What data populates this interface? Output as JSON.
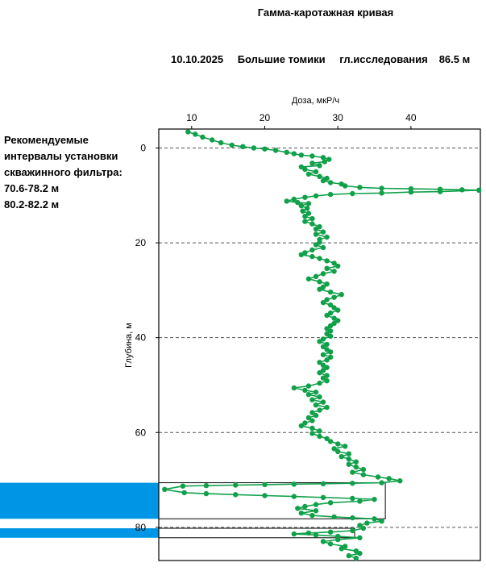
{
  "title": "Гамма-каротажная кривая",
  "header": {
    "date": "10.10.2025",
    "location": "Большие томики",
    "depth_label": "гл.исследования",
    "depth_value": "86.5 м"
  },
  "recommendation": {
    "lines": [
      "Рекомендуемые",
      "интервалы установки",
      "скважинного фильтра:"
    ],
    "intervals": [
      "70.6-78.2 м",
      "80.2-82.2 м"
    ]
  },
  "colors": {
    "curve": "#11a04a",
    "filter": "#0096e6",
    "grid": "#555555"
  },
  "chart_data": {
    "type": "line",
    "xlabel": "Доза, мкР/ч",
    "ylabel": "Глубина, м",
    "xlim": [
      5.5,
      49.5
    ],
    "ylim": [
      87,
      -4
    ],
    "xticks": [
      10,
      20,
      30,
      40
    ],
    "yticks": [
      0,
      20,
      40,
      60,
      80
    ],
    "x_axis_position": "top",
    "grid": "horizontal dashed",
    "filter_intervals": [
      [
        70.6,
        78.2
      ],
      [
        80.2,
        82.2
      ]
    ],
    "series": [
      {
        "points": [
          [
            9.5,
            -3.4
          ],
          [
            10.5,
            -2.9
          ],
          [
            11.5,
            -2.3
          ],
          [
            12.8,
            -1.7
          ],
          [
            14,
            -1.1
          ],
          [
            15.5,
            -0.6
          ],
          [
            17,
            -0.3
          ],
          [
            18.5,
            0
          ],
          [
            20,
            0.2
          ],
          [
            21.5,
            0.5
          ],
          [
            23,
            0.9
          ],
          [
            24,
            1.2
          ],
          [
            25,
            1.5
          ],
          [
            26.5,
            1.7
          ],
          [
            28,
            2
          ],
          [
            28.8,
            2.4
          ],
          [
            28.2,
            2.9
          ],
          [
            26.5,
            3.2
          ],
          [
            27.5,
            3.7
          ],
          [
            25,
            4
          ],
          [
            25.5,
            4.5
          ],
          [
            27,
            5
          ],
          [
            26,
            5.5
          ],
          [
            27.5,
            6
          ],
          [
            28.5,
            6.4
          ],
          [
            28,
            6.9
          ],
          [
            29,
            7.3
          ],
          [
            30.5,
            7.6
          ],
          [
            31,
            8
          ],
          [
            33,
            8.3
          ],
          [
            36,
            8.5
          ],
          [
            40,
            8.6
          ],
          [
            44,
            8.7
          ],
          [
            47,
            8.8
          ],
          [
            49.3,
            8.9
          ],
          [
            44,
            9.2
          ],
          [
            40,
            9.3
          ],
          [
            36,
            9.5
          ],
          [
            32,
            9.6
          ],
          [
            29,
            9.8
          ],
          [
            27,
            10.1
          ],
          [
            25.5,
            10.4
          ],
          [
            24,
            10.8
          ],
          [
            23,
            11.2
          ],
          [
            24.5,
            11.5
          ],
          [
            26,
            11.7
          ],
          [
            25,
            12.2
          ],
          [
            25.8,
            12.7
          ],
          [
            25.2,
            13.3
          ],
          [
            26,
            13.8
          ],
          [
            25.5,
            14.4
          ],
          [
            26.5,
            14.9
          ],
          [
            25.5,
            15.5
          ],
          [
            26.5,
            16
          ],
          [
            27.5,
            16.6
          ],
          [
            27,
            17.1
          ],
          [
            28,
            17.7
          ],
          [
            27,
            18.2
          ],
          [
            28.5,
            18.8
          ],
          [
            27.5,
            19.3
          ],
          [
            27.5,
            19.9
          ],
          [
            27,
            20.4
          ],
          [
            28,
            21
          ],
          [
            26.5,
            21.5
          ],
          [
            25.5,
            22.1
          ],
          [
            25,
            22.5
          ],
          [
            26.5,
            22.9
          ],
          [
            27.5,
            23.3
          ],
          [
            28.5,
            23.8
          ],
          [
            29.5,
            24.3
          ],
          [
            30,
            24.9
          ],
          [
            28.5,
            25.4
          ],
          [
            29.5,
            26
          ],
          [
            28,
            26.5
          ],
          [
            27,
            27.1
          ],
          [
            26,
            27.6
          ],
          [
            27.5,
            28.2
          ],
          [
            28.5,
            28.7
          ],
          [
            28,
            29.3
          ],
          [
            27.5,
            29.8
          ],
          [
            29,
            30.4
          ],
          [
            30.5,
            30.9
          ],
          [
            29.5,
            31.5
          ],
          [
            28.5,
            32
          ],
          [
            28,
            32.6
          ],
          [
            29,
            33.1
          ],
          [
            29.5,
            33.7
          ],
          [
            30,
            34.2
          ],
          [
            29,
            34.8
          ],
          [
            28.5,
            35.3
          ],
          [
            29.5,
            35.9
          ],
          [
            30,
            36.4
          ],
          [
            29.5,
            37
          ],
          [
            29,
            37.5
          ],
          [
            28.5,
            38.1
          ],
          [
            29,
            38.6
          ],
          [
            28.5,
            39.2
          ],
          [
            29,
            39.7
          ],
          [
            28,
            40.3
          ],
          [
            27.5,
            40.8
          ],
          [
            28.5,
            41.4
          ],
          [
            28,
            41.9
          ],
          [
            28.5,
            42.5
          ],
          [
            29,
            43
          ],
          [
            28,
            43.6
          ],
          [
            29,
            44.1
          ],
          [
            28.5,
            44.7
          ],
          [
            27.5,
            45.2
          ],
          [
            28,
            45.8
          ],
          [
            28.5,
            46.3
          ],
          [
            28,
            46.9
          ],
          [
            27.5,
            47.4
          ],
          [
            28.5,
            48
          ],
          [
            28,
            48.5
          ],
          [
            28.5,
            49.1
          ],
          [
            27.5,
            49.6
          ],
          [
            26,
            50.2
          ],
          [
            24,
            50.6
          ],
          [
            25.5,
            51.1
          ],
          [
            27,
            51.5
          ],
          [
            26,
            52
          ],
          [
            27.5,
            52.5
          ],
          [
            26.5,
            53.1
          ],
          [
            28,
            53.6
          ],
          [
            27,
            54.2
          ],
          [
            28.5,
            54.7
          ],
          [
            27.5,
            55.3
          ],
          [
            26.5,
            55.8
          ],
          [
            27,
            56.4
          ],
          [
            26,
            56.9
          ],
          [
            26.5,
            57.5
          ],
          [
            25.5,
            58
          ],
          [
            25,
            58.6
          ],
          [
            26.5,
            59.1
          ],
          [
            27.5,
            59.7
          ],
          [
            26.5,
            60.2
          ],
          [
            27.5,
            60.8
          ],
          [
            28.5,
            61.3
          ],
          [
            29,
            61.9
          ],
          [
            30,
            62.4
          ],
          [
            31,
            62.9
          ],
          [
            29.5,
            63.4
          ],
          [
            30,
            64
          ],
          [
            31.5,
            64.5
          ],
          [
            30.5,
            65.1
          ],
          [
            31.5,
            65.6
          ],
          [
            32.5,
            66.2
          ],
          [
            31.5,
            66.7
          ],
          [
            32.5,
            67.3
          ],
          [
            33.5,
            67.8
          ],
          [
            32,
            68.4
          ],
          [
            33.5,
            68.9
          ],
          [
            35.5,
            69.4
          ],
          [
            37,
            69.7
          ],
          [
            38.5,
            70.2
          ],
          [
            36,
            70.6
          ],
          [
            32,
            70.7
          ],
          [
            28,
            70.8
          ],
          [
            24,
            70.9
          ],
          [
            20,
            71
          ],
          [
            16,
            71.1
          ],
          [
            12,
            71.2
          ],
          [
            8.8,
            71.3
          ],
          [
            6.3,
            72
          ],
          [
            9,
            72.7
          ],
          [
            12,
            72.9
          ],
          [
            16,
            73.1
          ],
          [
            20,
            73.3
          ],
          [
            24,
            73.5
          ],
          [
            28,
            73.7
          ],
          [
            32,
            73.9
          ],
          [
            35,
            74.1
          ],
          [
            33,
            74.5
          ],
          [
            29,
            74.8
          ],
          [
            27,
            75.2
          ],
          [
            25.5,
            75.6
          ],
          [
            24.5,
            76
          ],
          [
            27,
            76.5
          ],
          [
            25,
            77
          ],
          [
            26.5,
            77.5
          ],
          [
            29.5,
            77.8
          ],
          [
            32,
            78
          ],
          [
            35,
            78.2
          ],
          [
            36,
            78.7
          ],
          [
            34,
            79.1
          ],
          [
            33,
            79.6
          ],
          [
            33.5,
            80.2
          ],
          [
            32,
            80.7
          ],
          [
            29,
            81
          ],
          [
            26,
            81.2
          ],
          [
            24,
            81.4
          ],
          [
            27,
            81.6
          ],
          [
            30,
            81.9
          ],
          [
            33,
            82.2
          ],
          [
            30,
            82.6
          ],
          [
            28,
            83
          ],
          [
            29,
            83.5
          ],
          [
            31,
            84
          ],
          [
            30.5,
            84.5
          ],
          [
            32.5,
            85
          ],
          [
            33,
            85.5
          ],
          [
            31.5,
            86
          ],
          [
            32.5,
            86.5
          ]
        ]
      }
    ]
  }
}
